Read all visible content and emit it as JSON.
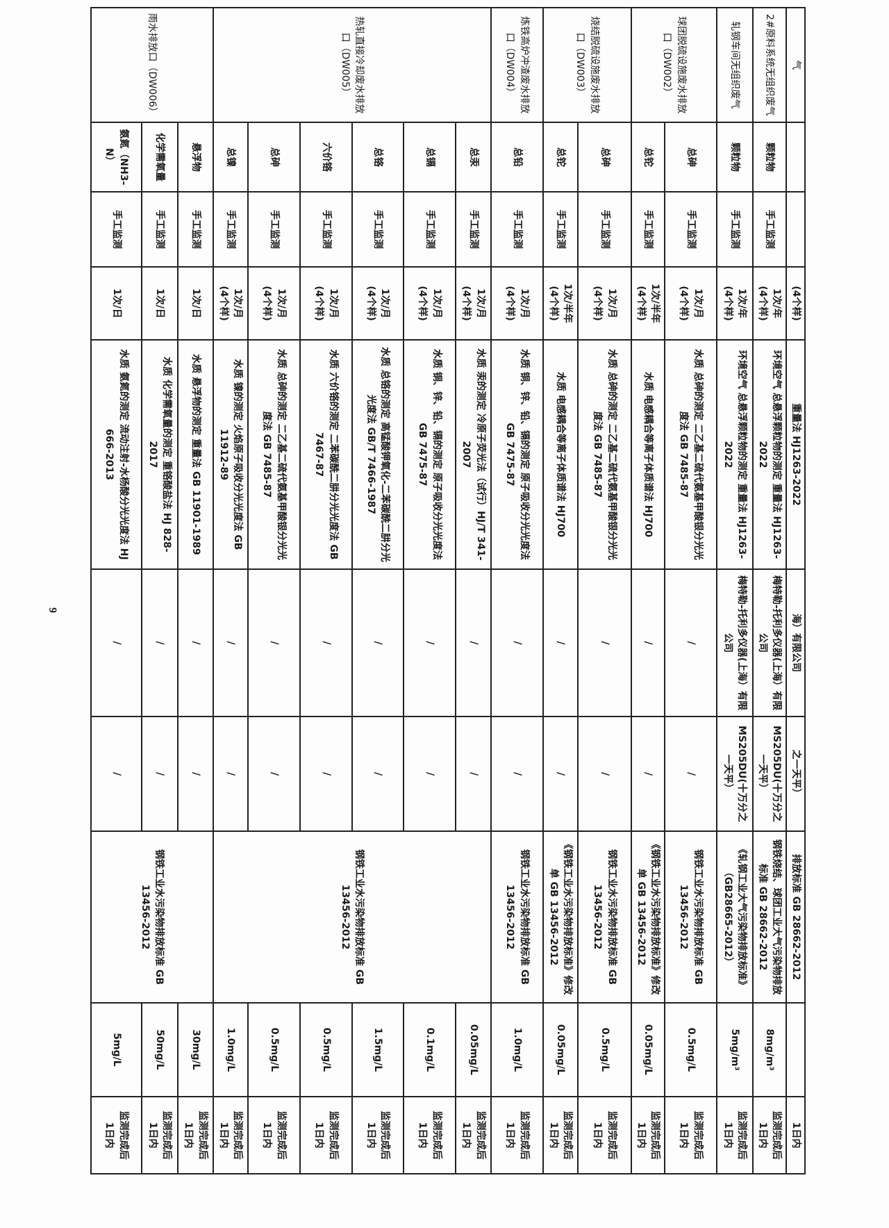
{
  "page_number": "9",
  "rows": [
    {
      "outlet": "气",
      "pollutant": "",
      "type": "",
      "freq": "(4个样)",
      "method": "重量法 HJ1263-2022",
      "instrument": "海）有限公司",
      "model": "之一天平）",
      "standard": "排放标准 GB 28662-2012",
      "limit": "",
      "timeliness": "1日内"
    },
    {
      "outlet": "2#原料系统无组织废气",
      "pollutant": "颗粒物",
      "type": "手工监测",
      "freq": "1次/年\n(4个样)",
      "method": "环境空气 总悬浮颗粒物的测定 重量法 HJ1263-2022",
      "instrument": "梅特勒-托利多仪器(上海）有限公司",
      "model": "MS205DU(十万分之一天平）",
      "standard": "钢铁烧结、球团工业大气污染物排放标准 GB 28662-2012",
      "limit": "8mg/m³",
      "timeliness": "监测完成后\n1日内"
    },
    {
      "outlet": "轧钢车间无组织废气",
      "pollutant": "颗粒物",
      "type": "手工监测",
      "freq": "1次/年\n(4个样)",
      "method": "环境空气 总悬浮颗粒物的测定 重量法 HJ1263-2022",
      "instrument": "梅特勒-托利多仪器(上海）有限公司",
      "model": "MS205DU(十万分之一天平）",
      "standard": "《轧钢工业大气污染物排放标准》（GB28665-2012）",
      "limit": "5mg/m³",
      "timeliness": "监测完成后\n1日内"
    },
    {
      "outlet": "球团脱硫设施废水排放口（DW002）",
      "pollutant": "总砷",
      "type": "手工监测",
      "freq": "1次/月\n(4个样)",
      "method": "水质 总砷的测定 二乙基二硫代氨基甲酸银分光光度法 GB 7485-87",
      "instrument": "/",
      "model": "/",
      "standard": "钢铁工业水污染物排放标准 GB 13456-2012",
      "limit": "0.5mg/L",
      "timeliness": "监测完成后\n1日内"
    },
    {
      "pollutant": "总铊",
      "type": "手工监测",
      "freq": "1次/半年\n(4个样)",
      "method": "水质 电感耦合等离子体质谱法 HJ700",
      "instrument": "/",
      "model": "/",
      "standard": "《钢铁工业水污染物排放标准》修改单 GB 13456-2012",
      "limit": "0.05mg/L",
      "timeliness": "监测完成后\n1日内"
    },
    {
      "outlet": "烧结脱硫设施废水排放口（DW003）",
      "pollutant": "总砷",
      "type": "手工监测",
      "freq": "1次/月\n(4个样)",
      "method": "水质 总砷的测定 二乙基二硫代氨基甲酸银分光光度法 GB 7485-87",
      "instrument": "/",
      "model": "/",
      "standard": "钢铁工业水污染物排放标准 GB 13456-2012",
      "limit": "0.5mg/L",
      "timeliness": "监测完成后\n1日内"
    },
    {
      "pollutant": "总铊",
      "type": "手工监测",
      "freq": "1次/半年\n(4个样)",
      "method": "水质 电感耦合等离子体质谱法 HJ700",
      "instrument": "/",
      "model": "/",
      "standard": "《钢铁工业水污染物排放标准》修改单 GB 13456-2012",
      "limit": "0.05mg/L",
      "timeliness": "监测完成后\n1日内"
    },
    {
      "outlet": "炼铁高炉冲渣废水排放口（DW004）",
      "pollutant": "总铅",
      "type": "手工监测",
      "freq": "1次/月\n(4个样)",
      "method": "水质 铜、锌、铅、镉的测定 原子吸收分光光度法 GB 7475-87",
      "instrument": "/",
      "model": "/",
      "standard": "钢铁工业水污染物排放标准 GB 13456-2012",
      "limit": "1.0mg/L",
      "timeliness": "监测完成后\n1日内"
    },
    {
      "outlet": "热轧直接冷却废水排放口（DW005）",
      "pollutant": "总汞",
      "type": "手工监测",
      "freq": "1次/月\n(4个样)",
      "method": "水质 汞的测定 冷原子荧光法（试行）HJ/T 341-2007",
      "instrument": "/",
      "model": "/",
      "standard": "钢铁工业水污染物排放标准 GB 13456-2012",
      "limit": "0.05mg/L",
      "timeliness": "监测完成后\n1日内"
    },
    {
      "pollutant": "总镉",
      "type": "手工监测",
      "freq": "1次/月\n(4个样)",
      "method": "水质 铜、锌、铅、镉的测定 原子吸收分光光度法 GB 7475-87",
      "instrument": "/",
      "model": "/",
      "limit": "0.1mg/L",
      "timeliness": "监测完成后\n1日内"
    },
    {
      "pollutant": "总铬",
      "type": "手工监测",
      "freq": "1次/月\n(4个样)",
      "method": "水质 总铬的测定 高锰酸钾氧化-二苯碳酰二肼分光光度法 GB/T 7466-1987",
      "instrument": "/",
      "model": "/",
      "limit": "1.5mg/L",
      "timeliness": "监测完成后\n1日内"
    },
    {
      "pollutant": "六价铬",
      "type": "手工监测",
      "freq": "1次/月\n(4个样)",
      "method": "水质 六价铬的测定 二苯碳酰二肼分光光度法 GB 7467-87",
      "instrument": "/",
      "model": "/",
      "limit": "0.5mg/L",
      "timeliness": "监测完成后\n1日内"
    },
    {
      "pollutant": "总砷",
      "type": "手工监测",
      "freq": "1次/月\n(4个样)",
      "method": "水质 总砷的测定 二乙基二硫代氨基甲酸银分光光度法 GB 7485-87",
      "instrument": "/",
      "model": "/",
      "limit": "0.5mg/L",
      "timeliness": "监测完成后\n1日内"
    },
    {
      "pollutant": "总镍",
      "type": "手工监测",
      "freq": "1次/月\n(4个样)",
      "method": "水质 镍的测定 火焰原子吸收分光光度法 GB 11912-89",
      "instrument": "/",
      "model": "/",
      "limit": "1.0mg/L",
      "timeliness": "监测完成后\n1日内"
    },
    {
      "outlet": "雨水排放口（DW006）",
      "pollutant": "悬浮物",
      "type": "手工监测",
      "freq": "1次/日",
      "method": "水质 悬浮物的测定 重量法 GB 11901-1989",
      "instrument": "/",
      "model": "/",
      "standard": "钢铁工业水污染物排放标准 GB 13456-2012",
      "limit": "30mg/L",
      "timeliness": "监测完成后\n1日内"
    },
    {
      "pollutant": "化学需氧量",
      "type": "手工监测",
      "freq": "1次/日",
      "method": "水质 化学需氧量的测定 重铬酸盐法 HJ 828-2017",
      "instrument": "/",
      "model": "/",
      "limit": "50mg/L",
      "timeliness": "监测完成后\n1日内"
    },
    {
      "pollutant": "氨氮（NH3-N）",
      "type": "手工监测",
      "freq": "1次/日",
      "method": "水质 氨氮的测定 流动注射-水杨酸分光光度法 HJ 666-2013",
      "instrument": "/",
      "model": "/",
      "limit": "5mg/L",
      "timeliness": "监测完成后\n1日内"
    }
  ]
}
